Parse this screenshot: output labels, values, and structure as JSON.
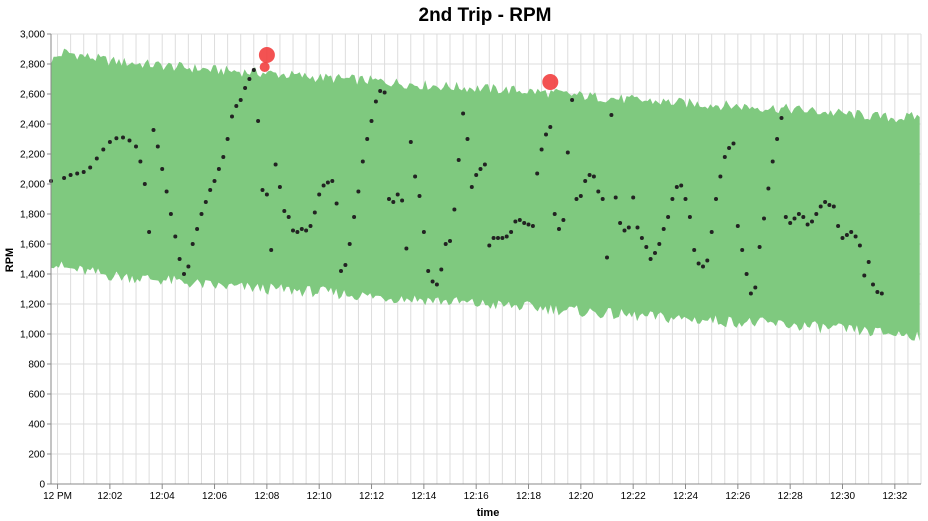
{
  "chart_data": {
    "type": "scatter",
    "title": "2nd Trip - RPM",
    "xlabel": "time",
    "ylabel": "RPM",
    "x_range": [
      "11:59:45",
      "12:33:00"
    ],
    "ylim": [
      0,
      3000
    ],
    "y_ticks": [
      0,
      200,
      400,
      600,
      800,
      1000,
      1200,
      1400,
      1600,
      1800,
      2000,
      2200,
      2400,
      2600,
      2800,
      3000
    ],
    "y_tick_labels": [
      "0",
      "200",
      "400",
      "600",
      "800",
      "1,000",
      "1,200",
      "1,400",
      "1,600",
      "1,800",
      "2,000",
      "2,200",
      "2,400",
      "2,600",
      "2,800",
      "3,000"
    ],
    "x_ticks": [
      "12:00",
      "12:02",
      "12:04",
      "12:06",
      "12:08",
      "12:10",
      "12:12",
      "12:14",
      "12:16",
      "12:18",
      "12:20",
      "12:22",
      "12:24",
      "12:26",
      "12:28",
      "12:30",
      "12:32"
    ],
    "x_tick_labels": [
      "12 PM",
      "12:02",
      "12:04",
      "12:06",
      "12:08",
      "12:10",
      "12:12",
      "12:14",
      "12:16",
      "12:18",
      "12:20",
      "12:22",
      "12:24",
      "12:26",
      "12:28",
      "12:30",
      "12:32"
    ],
    "grid": true,
    "colors": {
      "band": "#7fc97f",
      "point": "#222222",
      "anomaly": "#f23f3f",
      "grid": "#dddddd"
    },
    "band": {
      "upper": [
        [
          "11:59:45",
          2820
        ],
        [
          "12:00:15",
          2880
        ],
        [
          "12:02:00",
          2820
        ],
        [
          "12:04:00",
          2790
        ],
        [
          "12:06:00",
          2760
        ],
        [
          "12:08:00",
          2740
        ],
        [
          "12:10:00",
          2710
        ],
        [
          "12:12:00",
          2690
        ],
        [
          "12:14:00",
          2660
        ],
        [
          "12:16:00",
          2640
        ],
        [
          "12:18:00",
          2620
        ],
        [
          "12:20:00",
          2590
        ],
        [
          "12:22:00",
          2560
        ],
        [
          "12:24:00",
          2540
        ],
        [
          "12:26:00",
          2520
        ],
        [
          "12:28:00",
          2500
        ],
        [
          "12:30:00",
          2470
        ],
        [
          "12:32:00",
          2440
        ],
        [
          "12:33:00",
          2450
        ]
      ],
      "lower": [
        [
          "11:59:45",
          1480
        ],
        [
          "12:00:15",
          1440
        ],
        [
          "12:02:00",
          1390
        ],
        [
          "12:04:00",
          1360
        ],
        [
          "12:06:00",
          1320
        ],
        [
          "12:08:00",
          1300
        ],
        [
          "12:10:00",
          1280
        ],
        [
          "12:12:00",
          1250
        ],
        [
          "12:14:00",
          1230
        ],
        [
          "12:16:00",
          1200
        ],
        [
          "12:18:00",
          1180
        ],
        [
          "12:20:00",
          1150
        ],
        [
          "12:22:00",
          1120
        ],
        [
          "12:24:00",
          1100
        ],
        [
          "12:26:00",
          1080
        ],
        [
          "12:28:00",
          1060
        ],
        [
          "12:30:00",
          1030
        ],
        [
          "12:32:00",
          1000
        ],
        [
          "12:33:00",
          990
        ]
      ]
    },
    "series": [
      {
        "values": [
          [
            "11:59:45",
            2020
          ],
          [
            "12:00:15",
            2040
          ],
          [
            "12:00:30",
            2060
          ],
          [
            "12:00:45",
            2070
          ],
          [
            "12:01:00",
            2080
          ],
          [
            "12:01:15",
            2110
          ],
          [
            "12:01:30",
            2170
          ],
          [
            "12:01:45",
            2230
          ],
          [
            "12:02:00",
            2280
          ],
          [
            "12:02:15",
            2305
          ],
          [
            "12:02:30",
            2310
          ],
          [
            "12:02:45",
            2290
          ],
          [
            "12:03:00",
            2250
          ],
          [
            "12:03:10",
            2150
          ],
          [
            "12:03:20",
            2000
          ],
          [
            "12:03:30",
            1680
          ],
          [
            "12:03:40",
            2360
          ],
          [
            "12:03:50",
            2250
          ],
          [
            "12:04:00",
            2100
          ],
          [
            "12:04:10",
            1950
          ],
          [
            "12:04:20",
            1800
          ],
          [
            "12:04:30",
            1650
          ],
          [
            "12:04:40",
            1500
          ],
          [
            "12:04:50",
            1400
          ],
          [
            "12:05:00",
            1450
          ],
          [
            "12:05:10",
            1600
          ],
          [
            "12:05:20",
            1700
          ],
          [
            "12:05:30",
            1800
          ],
          [
            "12:05:40",
            1880
          ],
          [
            "12:05:50",
            1960
          ],
          [
            "12:06:00",
            2020
          ],
          [
            "12:06:10",
            2100
          ],
          [
            "12:06:20",
            2180
          ],
          [
            "12:06:30",
            2300
          ],
          [
            "12:06:40",
            2450
          ],
          [
            "12:06:50",
            2520
          ],
          [
            "12:07:00",
            2560
          ],
          [
            "12:07:10",
            2640
          ],
          [
            "12:07:20",
            2700
          ],
          [
            "12:07:30",
            2760
          ],
          [
            "12:07:40",
            2420
          ],
          [
            "12:07:50",
            1960
          ],
          [
            "12:08:00",
            1930
          ],
          [
            "12:08:10",
            1560
          ],
          [
            "12:08:20",
            2130
          ],
          [
            "12:08:30",
            1980
          ],
          [
            "12:08:40",
            1820
          ],
          [
            "12:08:50",
            1780
          ],
          [
            "12:09:00",
            1690
          ],
          [
            "12:09:10",
            1680
          ],
          [
            "12:09:20",
            1700
          ],
          [
            "12:09:30",
            1690
          ],
          [
            "12:09:40",
            1720
          ],
          [
            "12:09:50",
            1810
          ],
          [
            "12:10:00",
            1930
          ],
          [
            "12:10:10",
            1990
          ],
          [
            "12:10:20",
            2010
          ],
          [
            "12:10:30",
            2020
          ],
          [
            "12:10:40",
            1870
          ],
          [
            "12:10:50",
            1420
          ],
          [
            "12:11:00",
            1460
          ],
          [
            "12:11:10",
            1600
          ],
          [
            "12:11:20",
            1780
          ],
          [
            "12:11:30",
            1950
          ],
          [
            "12:11:40",
            2150
          ],
          [
            "12:11:50",
            2300
          ],
          [
            "12:12:00",
            2420
          ],
          [
            "12:12:10",
            2550
          ],
          [
            "12:12:20",
            2620
          ],
          [
            "12:12:30",
            2610
          ],
          [
            "12:12:40",
            1900
          ],
          [
            "12:12:50",
            1880
          ],
          [
            "12:13:00",
            1930
          ],
          [
            "12:13:10",
            1890
          ],
          [
            "12:13:20",
            1570
          ],
          [
            "12:13:30",
            2280
          ],
          [
            "12:13:40",
            2050
          ],
          [
            "12:13:50",
            1920
          ],
          [
            "12:14:00",
            1680
          ],
          [
            "12:14:10",
            1420
          ],
          [
            "12:14:20",
            1350
          ],
          [
            "12:14:30",
            1330
          ],
          [
            "12:14:40",
            1430
          ],
          [
            "12:14:50",
            1600
          ],
          [
            "12:15:00",
            1620
          ],
          [
            "12:15:10",
            1830
          ],
          [
            "12:15:20",
            2160
          ],
          [
            "12:15:30",
            2470
          ],
          [
            "12:15:40",
            2300
          ],
          [
            "12:15:50",
            1980
          ],
          [
            "12:16:00",
            2060
          ],
          [
            "12:16:10",
            2100
          ],
          [
            "12:16:20",
            2130
          ],
          [
            "12:16:30",
            1590
          ],
          [
            "12:16:40",
            1640
          ],
          [
            "12:16:50",
            1640
          ],
          [
            "12:17:00",
            1640
          ],
          [
            "12:17:10",
            1650
          ],
          [
            "12:17:20",
            1680
          ],
          [
            "12:17:30",
            1750
          ],
          [
            "12:17:40",
            1760
          ],
          [
            "12:17:50",
            1740
          ],
          [
            "12:18:00",
            1730
          ],
          [
            "12:18:10",
            1720
          ],
          [
            "12:18:20",
            2070
          ],
          [
            "12:18:30",
            2230
          ],
          [
            "12:18:40",
            2330
          ],
          [
            "12:18:50",
            2380
          ],
          [
            "12:19:00",
            1800
          ],
          [
            "12:19:10",
            1700
          ],
          [
            "12:19:20",
            1760
          ],
          [
            "12:19:30",
            2210
          ],
          [
            "12:19:40",
            2560
          ],
          [
            "12:19:50",
            1900
          ],
          [
            "12:20:00",
            1920
          ],
          [
            "12:20:10",
            2020
          ],
          [
            "12:20:20",
            2060
          ],
          [
            "12:20:30",
            2050
          ],
          [
            "12:20:40",
            1950
          ],
          [
            "12:20:50",
            1900
          ],
          [
            "12:21:00",
            1510
          ],
          [
            "12:21:10",
            2460
          ],
          [
            "12:21:20",
            1910
          ],
          [
            "12:21:30",
            1740
          ],
          [
            "12:21:40",
            1690
          ],
          [
            "12:21:50",
            1710
          ],
          [
            "12:22:00",
            1910
          ],
          [
            "12:22:10",
            1710
          ],
          [
            "12:22:20",
            1640
          ],
          [
            "12:22:30",
            1580
          ],
          [
            "12:22:40",
            1500
          ],
          [
            "12:22:50",
            1540
          ],
          [
            "12:23:00",
            1600
          ],
          [
            "12:23:10",
            1700
          ],
          [
            "12:23:20",
            1780
          ],
          [
            "12:23:30",
            1900
          ],
          [
            "12:23:40",
            1980
          ],
          [
            "12:23:50",
            1990
          ],
          [
            "12:24:00",
            1900
          ],
          [
            "12:24:10",
            1780
          ],
          [
            "12:24:20",
            1560
          ],
          [
            "12:24:30",
            1470
          ],
          [
            "12:24:40",
            1450
          ],
          [
            "12:24:50",
            1490
          ],
          [
            "12:25:00",
            1680
          ],
          [
            "12:25:10",
            1900
          ],
          [
            "12:25:20",
            2050
          ],
          [
            "12:25:30",
            2180
          ],
          [
            "12:25:40",
            2240
          ],
          [
            "12:25:50",
            2270
          ],
          [
            "12:26:00",
            1720
          ],
          [
            "12:26:10",
            1560
          ],
          [
            "12:26:20",
            1400
          ],
          [
            "12:26:30",
            1270
          ],
          [
            "12:26:40",
            1310
          ],
          [
            "12:26:50",
            1580
          ],
          [
            "12:27:00",
            1770
          ],
          [
            "12:27:10",
            1970
          ],
          [
            "12:27:20",
            2150
          ],
          [
            "12:27:30",
            2300
          ],
          [
            "12:27:40",
            2440
          ],
          [
            "12:27:50",
            1780
          ],
          [
            "12:28:00",
            1740
          ],
          [
            "12:28:10",
            1770
          ],
          [
            "12:28:20",
            1800
          ],
          [
            "12:28:30",
            1780
          ],
          [
            "12:28:40",
            1730
          ],
          [
            "12:28:50",
            1750
          ],
          [
            "12:29:00",
            1800
          ],
          [
            "12:29:10",
            1850
          ],
          [
            "12:29:20",
            1880
          ],
          [
            "12:29:30",
            1860
          ],
          [
            "12:29:40",
            1850
          ],
          [
            "12:29:50",
            1720
          ],
          [
            "12:30:00",
            1640
          ],
          [
            "12:30:10",
            1660
          ],
          [
            "12:30:20",
            1680
          ],
          [
            "12:30:30",
            1650
          ],
          [
            "12:30:40",
            1590
          ],
          [
            "12:30:50",
            1390
          ],
          [
            "12:31:00",
            1480
          ],
          [
            "12:31:10",
            1330
          ],
          [
            "12:31:20",
            1280
          ],
          [
            "12:31:30",
            1270
          ]
        ]
      }
    ],
    "anomalies": [
      {
        "time": "12:08:00",
        "rpm": 2860,
        "size": "large"
      },
      {
        "time": "12:07:55",
        "rpm": 2780,
        "size": "small"
      },
      {
        "time": "12:18:50",
        "rpm": 2680,
        "size": "large"
      }
    ]
  }
}
